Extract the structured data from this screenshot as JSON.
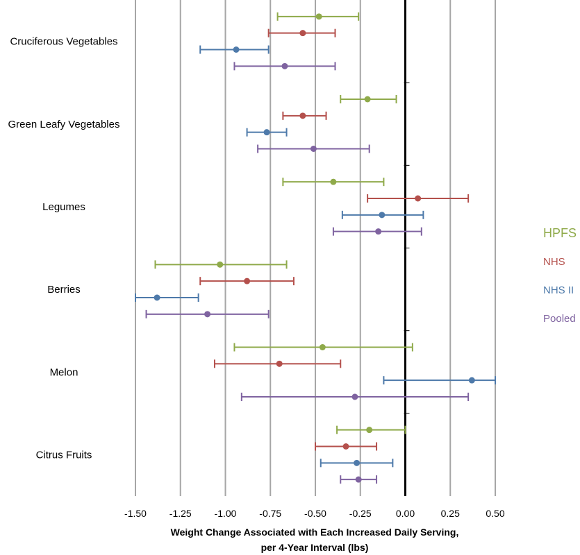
{
  "chart_data": {
    "type": "scatter",
    "title": "",
    "xlabel_line1": "Weight Change Associated with Each Increased Daily Serving,",
    "xlabel_line2": "per 4-Year Interval (lbs)",
    "ylabel": "",
    "xlim": [
      -1.5,
      0.5
    ],
    "x_ticks": [
      "-1.50",
      "-1.25",
      "-1.00",
      "-0.75",
      "-0.50",
      "-0.25",
      "0.00",
      "0.25",
      "0.50"
    ],
    "x_tick_values": [
      -1.5,
      -1.25,
      -1.0,
      -0.75,
      -0.5,
      -0.25,
      0.0,
      0.25,
      0.5
    ],
    "grid": "vertical",
    "reference_line": 0,
    "legend_position": "right",
    "categories": [
      "Cruciferous Vegetables",
      "Green Leafy Vegetables",
      "Legumes",
      "Berries",
      "Melon",
      "Citrus Fruits"
    ],
    "series": [
      {
        "name": "HPFS",
        "color": "#8faa4a",
        "values": [
          -0.48,
          -0.21,
          -0.4,
          -1.03,
          -0.46,
          -0.2
        ],
        "lower": [
          -0.71,
          -0.36,
          -0.68,
          -1.39,
          -0.95,
          -0.38
        ],
        "upper": [
          -0.26,
          -0.05,
          -0.12,
          -0.66,
          0.04,
          0.0
        ]
      },
      {
        "name": "NHS",
        "color": "#b4504c",
        "values": [
          -0.57,
          -0.57,
          0.07,
          -0.88,
          -0.7,
          -0.33
        ],
        "lower": [
          -0.76,
          -0.68,
          -0.21,
          -1.14,
          -1.06,
          -0.5
        ],
        "upper": [
          -0.39,
          -0.44,
          0.35,
          -0.62,
          -0.36,
          -0.16
        ]
      },
      {
        "name": "NHS II",
        "color": "#4e7aaa",
        "values": [
          -0.94,
          -0.77,
          -0.13,
          -1.38,
          0.37,
          -0.27
        ],
        "lower": [
          -1.14,
          -0.88,
          -0.35,
          -1.5,
          -0.12,
          -0.47
        ],
        "upper": [
          -0.76,
          -0.66,
          0.1,
          -1.15,
          0.5,
          -0.07
        ]
      },
      {
        "name": "Pooled",
        "color": "#7f63a0",
        "values": [
          -0.67,
          -0.51,
          -0.15,
          -1.1,
          -0.28,
          -0.26
        ],
        "lower": [
          -0.95,
          -0.82,
          -0.4,
          -1.44,
          -0.91,
          -0.36
        ],
        "upper": [
          -0.39,
          -0.2,
          0.09,
          -0.76,
          0.35,
          -0.16
        ]
      }
    ]
  }
}
